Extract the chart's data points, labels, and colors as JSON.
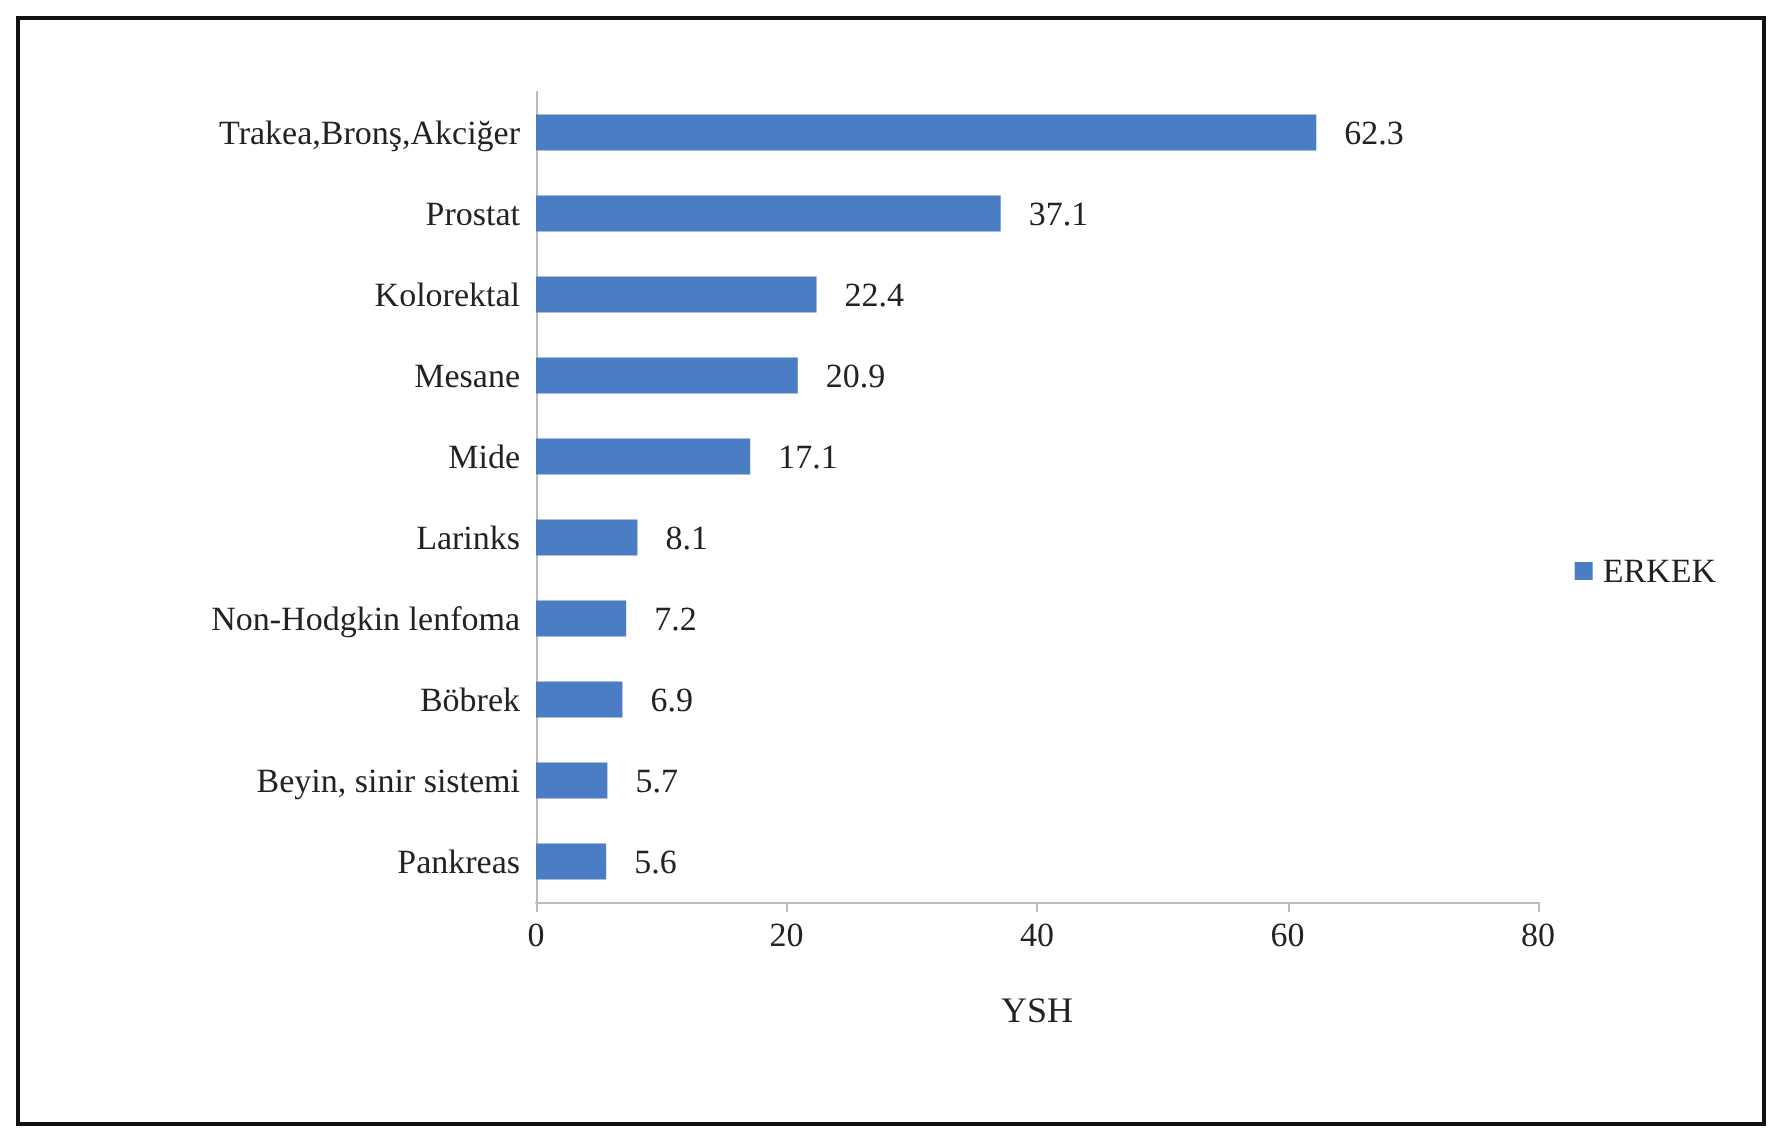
{
  "chart_data": {
    "type": "bar",
    "orientation": "horizontal",
    "xlabel": "YSH",
    "categories": [
      "Trakea,Bronş,Akciğer",
      "Prostat",
      "Kolorektal",
      "Mesane",
      "Mide",
      "Larinks",
      "Non-Hodgkin lenfoma",
      "Böbrek",
      "Beyin, sinir sistemi",
      "Pankreas"
    ],
    "series": [
      {
        "name": "ERKEK",
        "color": "#4a7dc4",
        "values": [
          62.3,
          37.1,
          22.4,
          20.9,
          17.1,
          8.1,
          7.2,
          6.9,
          5.7,
          5.6
        ]
      }
    ],
    "xlim": [
      0,
      80
    ],
    "xticks": [
      0,
      20,
      40,
      60,
      80
    ],
    "data_labels": true,
    "grid": false,
    "legend": "right"
  }
}
